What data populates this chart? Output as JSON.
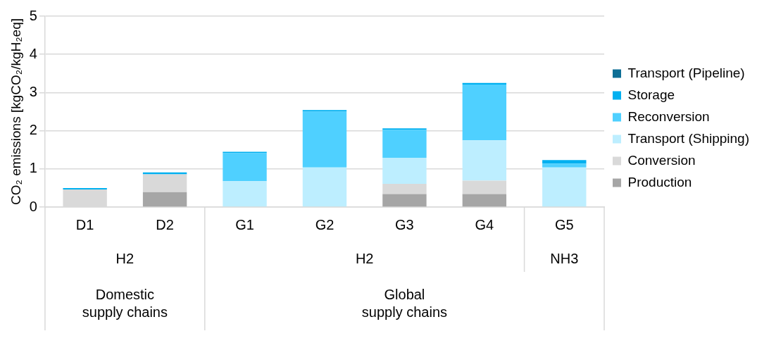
{
  "chart_data": {
    "type": "bar",
    "stacked": true,
    "ylabel": "CO₂ emissions [kgCO₂/kgH₂eq]",
    "categories": [
      "D1",
      "D2",
      "G1",
      "G2",
      "G3",
      "G4",
      "G5"
    ],
    "series": [
      {
        "name": "Production",
        "color": "#a6a6a6",
        "values": [
          0,
          0.39,
          0,
          0,
          0.34,
          0.34,
          0
        ]
      },
      {
        "name": "Conversion",
        "color": "#d9d9d9",
        "values": [
          0.46,
          0.47,
          0,
          0,
          0.27,
          0.35,
          0
        ]
      },
      {
        "name": "Transport (Shipping)",
        "color": "#bdeeff",
        "values": [
          0,
          0,
          0.68,
          1.04,
          0.68,
          1.06,
          1.04
        ]
      },
      {
        "name": "Reconversion",
        "color": "#4fd0ff",
        "values": [
          0,
          0,
          0.73,
          1.46,
          0.73,
          1.46,
          0.1
        ]
      },
      {
        "name": "Storage",
        "color": "#00b0f0",
        "values": [
          0.04,
          0.05,
          0.04,
          0.04,
          0.04,
          0.04,
          0.09
        ]
      },
      {
        "name": "Transport (Pipeline)",
        "color": "#0e6f96",
        "values": [
          0,
          0,
          0,
          0,
          0,
          0,
          0
        ]
      }
    ],
    "ylim": [
      0,
      5
    ],
    "yticks": [
      0,
      1,
      2,
      3,
      4,
      5
    ],
    "grid": "y",
    "legend": "right",
    "annotations": [
      "H2",
      "H2",
      "NH3",
      "Domestic supply chains",
      "Global supply chains"
    ]
  }
}
